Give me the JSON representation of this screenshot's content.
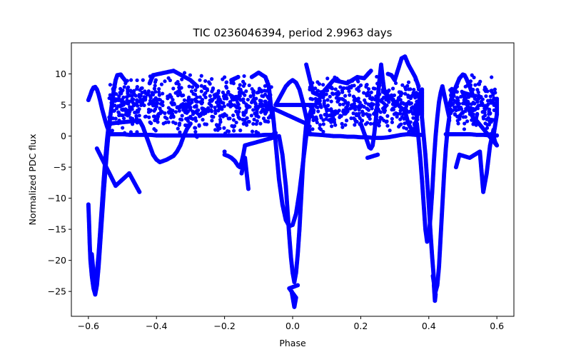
{
  "chart_data": {
    "type": "scatter",
    "title": "TIC 0236046394, period 2.9963 days",
    "xlabel": "Phase",
    "ylabel": "Normalized PDC flux",
    "xlim": [
      -0.65,
      0.65
    ],
    "ylim": [
      -29,
      15
    ],
    "xticks": [
      -0.6,
      -0.4,
      -0.2,
      0.0,
      0.2,
      0.4,
      0.6
    ],
    "xtick_labels": [
      "−0.6",
      "−0.4",
      "−0.2",
      "0.0",
      "0.2",
      "0.4",
      "0.6"
    ],
    "yticks": [
      -25,
      -20,
      -15,
      -10,
      -5,
      0,
      5,
      10
    ],
    "ytick_labels": [
      "−25",
      "−20",
      "−15",
      "−10",
      "−5",
      "0",
      "5",
      "10"
    ],
    "grid": false,
    "marker_color": "#0000ff",
    "series": [
      {
        "name": "",
        "points": [
          [
            -0.6,
            5.8
          ],
          [
            -0.595,
            6.5
          ],
          [
            -0.59,
            7.3
          ],
          [
            -0.585,
            7.8
          ],
          [
            -0.58,
            7.9
          ],
          [
            -0.575,
            7.5
          ],
          [
            -0.57,
            6.7
          ],
          [
            -0.565,
            5.6
          ],
          [
            -0.56,
            4.4
          ],
          [
            -0.555,
            3.4
          ],
          [
            -0.55,
            2.4
          ],
          [
            -0.545,
            1.5
          ],
          [
            -0.54,
            0.8
          ],
          [
            -0.535,
            0.3
          ],
          [
            -0.52,
            0.3
          ],
          [
            -0.5,
            0.3
          ],
          [
            -0.48,
            0.2
          ],
          [
            -0.46,
            0.2
          ],
          [
            -0.44,
            0.2
          ],
          [
            -0.42,
            0.2
          ],
          [
            -0.4,
            0.1
          ],
          [
            -0.38,
            0.1
          ],
          [
            -0.36,
            0.1
          ],
          [
            -0.34,
            0.1
          ],
          [
            -0.32,
            0.1
          ],
          [
            -0.3,
            0.1
          ],
          [
            -0.28,
            0.1
          ],
          [
            -0.26,
            0.1
          ],
          [
            -0.24,
            0.1
          ],
          [
            -0.22,
            0.1
          ],
          [
            -0.2,
            0.1
          ],
          [
            -0.18,
            0.1
          ],
          [
            -0.16,
            0.1
          ],
          [
            -0.14,
            0.1
          ],
          [
            -0.12,
            0.1
          ],
          [
            -0.1,
            0.1
          ],
          [
            -0.08,
            0.2
          ],
          [
            -0.06,
            0.2
          ],
          [
            -0.05,
            0.5
          ],
          [
            -0.6,
            -11.0
          ],
          [
            -0.598,
            -14.0
          ],
          [
            -0.596,
            -17.5
          ],
          [
            -0.594,
            -20.0
          ],
          [
            -0.59,
            -22.5
          ],
          [
            -0.585,
            -24.5
          ],
          [
            -0.58,
            -25.5
          ],
          [
            -0.575,
            -24.0
          ],
          [
            -0.57,
            -21.0
          ],
          [
            -0.565,
            -17.0
          ],
          [
            -0.56,
            -13.0
          ],
          [
            -0.555,
            -9.0
          ],
          [
            -0.55,
            -5.5
          ],
          [
            -0.545,
            -2.0
          ],
          [
            -0.54,
            1.0
          ],
          [
            -0.535,
            3.5
          ],
          [
            -0.53,
            5.5
          ],
          [
            -0.525,
            7.5
          ],
          [
            -0.52,
            9.0
          ],
          [
            -0.515,
            9.8
          ],
          [
            -0.505,
            9.9
          ],
          [
            -0.5,
            9.5
          ],
          [
            -0.49,
            8.8
          ],
          [
            -0.59,
            -19.0
          ],
          [
            -0.585,
            -22.0
          ],
          [
            -0.58,
            -23.5
          ],
          [
            -0.575,
            -22.0
          ],
          [
            -0.57,
            -19.0
          ],
          [
            -0.565,
            -15.0
          ],
          [
            -0.56,
            -11.0
          ],
          [
            -0.555,
            -7.0
          ],
          [
            -0.55,
            -3.5
          ],
          [
            -0.545,
            -0.5
          ],
          [
            -0.54,
            2.0
          ],
          [
            -0.45,
            2.5
          ],
          [
            -0.44,
            1.5
          ],
          [
            -0.43,
            0.0
          ],
          [
            -0.42,
            -1.5
          ],
          [
            -0.41,
            -3.0
          ],
          [
            -0.4,
            -3.8
          ],
          [
            -0.39,
            -4.2
          ],
          [
            -0.38,
            -4.0
          ],
          [
            -0.37,
            -3.8
          ],
          [
            -0.36,
            -3.5
          ],
          [
            -0.35,
            -3.2
          ],
          [
            -0.34,
            -2.5
          ],
          [
            -0.33,
            -1.5
          ],
          [
            -0.32,
            0.0
          ],
          [
            -0.31,
            1.2
          ],
          [
            -0.3,
            2.0
          ],
          [
            -0.2,
            -3.0
          ],
          [
            -0.19,
            -3.2
          ],
          [
            -0.18,
            -3.5
          ],
          [
            -0.17,
            -4.0
          ],
          [
            -0.16,
            -4.8
          ],
          [
            -0.155,
            -5.0
          ],
          [
            -0.15,
            -4.2
          ],
          [
            -0.145,
            -3.0
          ],
          [
            -0.14,
            -1.5
          ],
          [
            -0.04,
            0.0
          ],
          [
            -0.03,
            -3.0
          ],
          [
            -0.02,
            -8.0
          ],
          [
            -0.015,
            -12.0
          ],
          [
            -0.01,
            -16.0
          ],
          [
            -0.005,
            -19.5
          ],
          [
            0.0,
            -22.0
          ],
          [
            0.005,
            -23.5
          ],
          [
            0.01,
            -22.0
          ],
          [
            0.015,
            -19.0
          ],
          [
            0.02,
            -15.0
          ],
          [
            0.025,
            -10.0
          ],
          [
            0.03,
            -5.0
          ],
          [
            0.035,
            -1.0
          ],
          [
            0.04,
            2.0
          ],
          [
            -0.06,
            4.5
          ],
          [
            -0.055,
            2.0
          ],
          [
            -0.05,
            -1.0
          ],
          [
            -0.045,
            -4.0
          ],
          [
            -0.04,
            -7.0
          ],
          [
            -0.03,
            -11.0
          ],
          [
            -0.02,
            -13.5
          ],
          [
            -0.01,
            -14.5
          ],
          [
            0.0,
            -14.3
          ],
          [
            0.01,
            -12.5
          ],
          [
            0.02,
            -9.0
          ],
          [
            0.03,
            -4.5
          ],
          [
            0.04,
            0.0
          ],
          [
            0.05,
            3.5
          ],
          [
            0.06,
            5.0
          ],
          [
            -0.05,
            5.0
          ],
          [
            -0.04,
            6.0
          ],
          [
            -0.03,
            7.0
          ],
          [
            -0.02,
            8.0
          ],
          [
            -0.01,
            8.6
          ],
          [
            0.0,
            9.0
          ],
          [
            0.01,
            8.6
          ],
          [
            0.02,
            7.5
          ],
          [
            0.03,
            5.5
          ],
          [
            0.04,
            3.0
          ],
          [
            0.05,
            0.5
          ],
          [
            0.0,
            -25.5
          ],
          [
            0.003,
            -26.0
          ],
          [
            -0.003,
            -25.0
          ],
          [
            0.005,
            -27.5
          ],
          [
            0.01,
            -26.0
          ],
          [
            -0.01,
            -24.5
          ],
          [
            0.015,
            -24.0
          ],
          [
            0.05,
            0.3
          ],
          [
            0.08,
            0.2
          ],
          [
            0.1,
            0.1
          ],
          [
            0.12,
            0.0
          ],
          [
            0.14,
            0.0
          ],
          [
            0.16,
            -0.1
          ],
          [
            0.18,
            -0.1
          ],
          [
            0.2,
            -0.2
          ],
          [
            0.22,
            -0.2
          ],
          [
            0.24,
            -0.3
          ],
          [
            0.26,
            -0.3
          ],
          [
            0.28,
            -0.2
          ],
          [
            0.3,
            0.0
          ],
          [
            0.32,
            0.2
          ],
          [
            0.34,
            0.3
          ],
          [
            0.36,
            0.2
          ],
          [
            0.38,
            0.2
          ],
          [
            0.2,
            2.0
          ],
          [
            0.21,
            0.5
          ],
          [
            0.22,
            -1.0
          ],
          [
            0.225,
            -1.8
          ],
          [
            0.23,
            -2.0
          ],
          [
            0.235,
            -1.5
          ],
          [
            0.24,
            0.5
          ],
          [
            0.245,
            3.0
          ],
          [
            0.25,
            6.0
          ],
          [
            0.255,
            9.0
          ],
          [
            0.26,
            11.5
          ],
          [
            0.265,
            9.0
          ],
          [
            0.27,
            7.0
          ],
          [
            0.33,
            4.0
          ],
          [
            0.34,
            2.0
          ],
          [
            0.35,
            1.0
          ],
          [
            0.355,
            0.5
          ],
          [
            0.36,
            1.5
          ],
          [
            0.365,
            3.0
          ],
          [
            0.37,
            5.0
          ],
          [
            0.375,
            6.8
          ],
          [
            0.38,
            7.5
          ],
          [
            0.38,
            3.0
          ],
          [
            0.385,
            0.0
          ],
          [
            0.39,
            -3.0
          ],
          [
            0.395,
            -7.0
          ],
          [
            0.4,
            -11.0
          ],
          [
            0.405,
            -15.5
          ],
          [
            0.41,
            -19.5
          ],
          [
            0.415,
            -23.0
          ],
          [
            0.42,
            -25.0
          ],
          [
            0.425,
            -24.0
          ],
          [
            0.43,
            -21.0
          ],
          [
            0.435,
            -16.0
          ],
          [
            0.44,
            -11.0
          ],
          [
            0.445,
            -6.0
          ],
          [
            0.45,
            -2.0
          ],
          [
            0.455,
            1.0
          ],
          [
            0.46,
            3.0
          ],
          [
            0.44,
            8.0
          ],
          [
            0.435,
            7.0
          ],
          [
            0.43,
            5.5
          ],
          [
            0.425,
            3.0
          ],
          [
            0.42,
            0.0
          ],
          [
            0.415,
            -4.0
          ],
          [
            0.41,
            -9.0
          ],
          [
            0.405,
            -13.0
          ],
          [
            0.4,
            -16.0
          ],
          [
            0.395,
            -17.0
          ],
          [
            0.39,
            -15.0
          ],
          [
            0.385,
            -11.0
          ],
          [
            0.38,
            -7.0
          ],
          [
            0.375,
            -3.5
          ],
          [
            0.37,
            -0.5
          ],
          [
            0.365,
            2.0
          ],
          [
            0.415,
            -24.0
          ],
          [
            0.418,
            -26.5
          ],
          [
            0.42,
            -25.5
          ],
          [
            0.412,
            -22.5
          ],
          [
            0.45,
            0.3
          ],
          [
            0.48,
            0.3
          ],
          [
            0.5,
            0.3
          ],
          [
            0.52,
            0.3
          ],
          [
            0.54,
            0.2
          ],
          [
            0.56,
            0.2
          ],
          [
            0.58,
            0.1
          ],
          [
            0.6,
            0.1
          ],
          [
            0.46,
            5.0
          ],
          [
            0.47,
            6.5
          ],
          [
            0.48,
            8.0
          ],
          [
            0.49,
            9.3
          ],
          [
            0.5,
            9.9
          ],
          [
            0.505,
            9.8
          ],
          [
            0.51,
            9.3
          ],
          [
            0.52,
            8.0
          ],
          [
            0.53,
            6.5
          ],
          [
            0.5,
            7.0
          ],
          [
            0.51,
            5.5
          ],
          [
            0.52,
            4.0
          ],
          [
            0.53,
            3.0
          ],
          [
            0.54,
            2.5
          ],
          [
            0.6,
            -1.5
          ],
          [
            0.595,
            -1.0
          ],
          [
            0.59,
            0.0
          ],
          [
            0.6,
            3.5
          ],
          [
            0.6,
            5.0
          ],
          [
            0.6,
            6.0
          ],
          [
            -0.575,
            -2.0
          ],
          [
            -0.52,
            -8.0
          ],
          [
            -0.48,
            -6.0
          ],
          [
            -0.45,
            -9.0
          ],
          [
            -0.42,
            8.5
          ],
          [
            -0.41,
            9.8
          ],
          [
            -0.35,
            10.5
          ],
          [
            -0.3,
            9.0
          ],
          [
            -0.28,
            8.0
          ],
          [
            -0.2,
            -2.5
          ],
          [
            -0.18,
            9.0
          ],
          [
            -0.16,
            9.5
          ],
          [
            -0.15,
            -6.0
          ],
          [
            -0.14,
            -3.5
          ],
          [
            -0.13,
            -8.5
          ],
          [
            -0.12,
            9.5
          ],
          [
            -0.1,
            10.2
          ],
          [
            -0.08,
            9.5
          ],
          [
            -0.07,
            8.0
          ],
          [
            -0.06,
            3.0
          ],
          [
            0.04,
            11.5
          ],
          [
            0.06,
            7.0
          ],
          [
            0.08,
            6.5
          ],
          [
            0.12,
            9.0
          ],
          [
            0.16,
            8.5
          ],
          [
            0.19,
            9.5
          ],
          [
            0.21,
            9.3
          ],
          [
            0.23,
            10.5
          ],
          [
            0.22,
            -3.5
          ],
          [
            0.25,
            -3.0
          ],
          [
            0.28,
            10.0
          ],
          [
            0.29,
            9.8
          ],
          [
            0.3,
            9.0
          ],
          [
            0.32,
            12.5
          ],
          [
            0.33,
            12.8
          ],
          [
            0.34,
            11.5
          ],
          [
            0.35,
            10.5
          ],
          [
            0.36,
            9.5
          ],
          [
            0.37,
            8.0
          ],
          [
            0.48,
            -5.0
          ],
          [
            0.49,
            -3.0
          ],
          [
            0.52,
            -3.5
          ],
          [
            0.55,
            -2.5
          ],
          [
            0.56,
            -9.0
          ],
          [
            0.57,
            -6.0
          ],
          [
            0.58,
            -1.5
          ],
          [
            0.59,
            1.0
          ]
        ]
      }
    ],
    "dense_band": {
      "x_ranges": [
        [
          -0.54,
          -0.06
        ],
        [
          0.05,
          0.38
        ],
        [
          0.46,
          0.6
        ]
      ],
      "y_center": 5.0,
      "y_spread": 2.5
    }
  }
}
